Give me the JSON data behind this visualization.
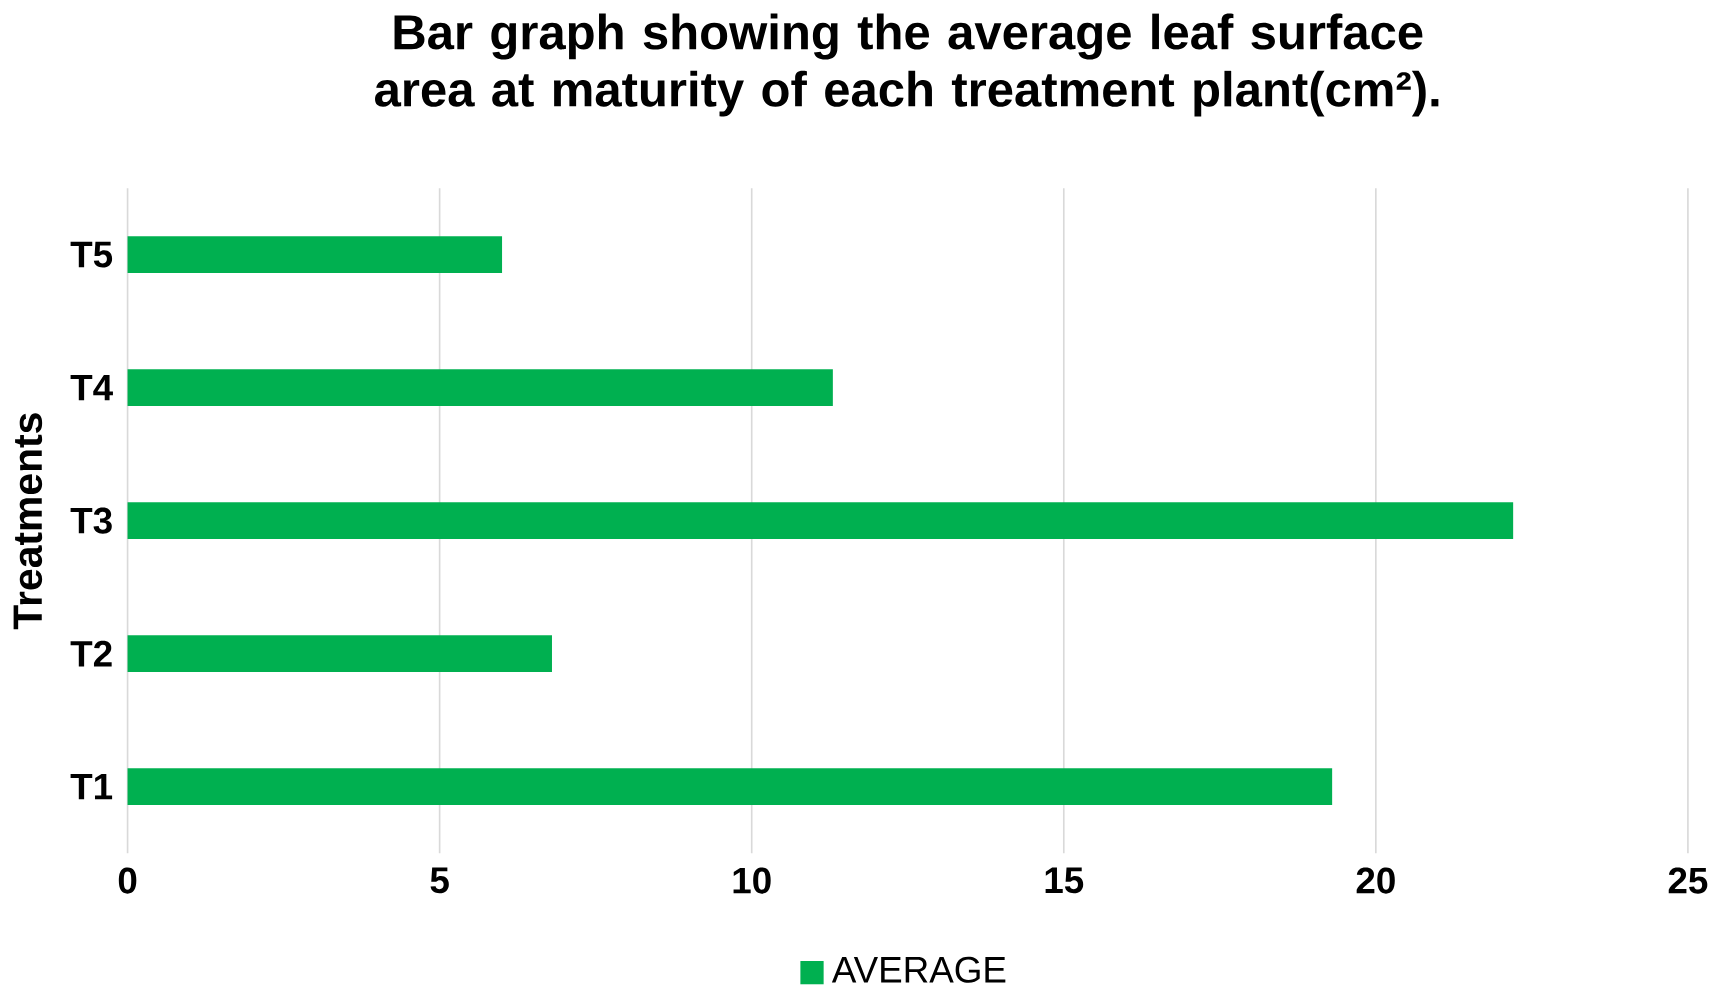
{
  "chart_data": {
    "type": "bar",
    "orientation": "horizontal",
    "title": "Bar graph showing the average leaf surface area at maturity of each treatment plant(cm²).",
    "ylabel": "Treatments",
    "categories": [
      "T5",
      "T4",
      "T3",
      "T2",
      "T1"
    ],
    "series": [
      {
        "name": "AVERAGE",
        "color": "#00b050",
        "values": [
          6.0,
          11.3,
          22.2,
          6.8,
          19.3
        ]
      }
    ],
    "xlim": [
      0,
      25
    ],
    "xticks": [
      0,
      5,
      10,
      15,
      20,
      25
    ],
    "grid": "x",
    "legend": "bottom"
  }
}
